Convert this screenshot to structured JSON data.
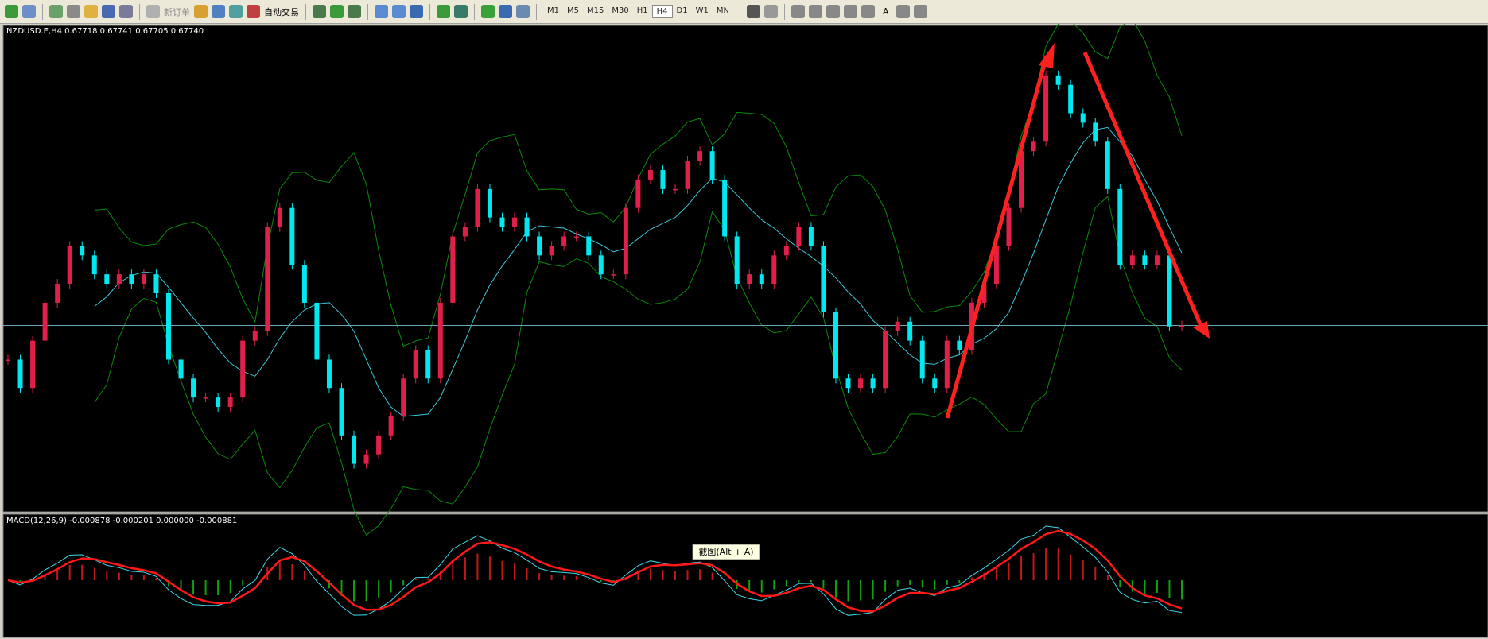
{
  "toolbar": {
    "new_order": "新订单",
    "auto_trading": "自动交易",
    "timeframes": [
      "M1",
      "M5",
      "M15",
      "M30",
      "H1",
      "H4",
      "D1",
      "W1",
      "MN"
    ],
    "text_tool": "A"
  },
  "chart": {
    "header": "NZDUSD.E,H4 0.67718 0.67741 0.67705 0.67740",
    "ylim": [
      0.6696,
      0.69
    ],
    "closes": [
      0.67596,
      0.67476,
      0.67676,
      0.67836,
      0.67916,
      0.68076,
      0.68036,
      0.67956,
      0.67916,
      0.67956,
      0.67916,
      0.67956,
      0.67876,
      0.67596,
      0.67516,
      0.67436,
      0.67436,
      0.67396,
      0.67436,
      0.67676,
      0.67716,
      0.68156,
      0.68236,
      0.67996,
      0.67836,
      0.67596,
      0.67476,
      0.67276,
      0.67156,
      0.67196,
      0.67276,
      0.67356,
      0.67516,
      0.67636,
      0.67516,
      0.67836,
      0.68116,
      0.68156,
      0.68316,
      0.68196,
      0.68156,
      0.68196,
      0.68116,
      0.68036,
      0.68076,
      0.68116,
      0.68116,
      0.68036,
      0.67956,
      0.67956,
      0.68236,
      0.68356,
      0.68396,
      0.68316,
      0.68316,
      0.68436,
      0.68476,
      0.68356,
      0.68116,
      0.67916,
      0.67956,
      0.67916,
      0.68036,
      0.68076,
      0.68156,
      0.68076,
      0.67796,
      0.67516,
      0.67476,
      0.67516,
      0.67476,
      0.67716,
      0.67756,
      0.67676,
      0.67516,
      0.67476,
      0.67676,
      0.67636,
      0.67836,
      0.67916,
      0.68076,
      0.68236,
      0.68476,
      0.68516,
      0.68796,
      0.68756,
      0.68636,
      0.68596,
      0.68516,
      0.68316,
      0.67996,
      0.68036,
      0.67996,
      0.68036,
      0.67736,
      0.6774
    ]
  },
  "macd": {
    "header": "MACD(12,26,9) -0.000878 -0.000201 0.000000 -0.000881"
  },
  "tooltip": "截图(Alt + A)"
}
